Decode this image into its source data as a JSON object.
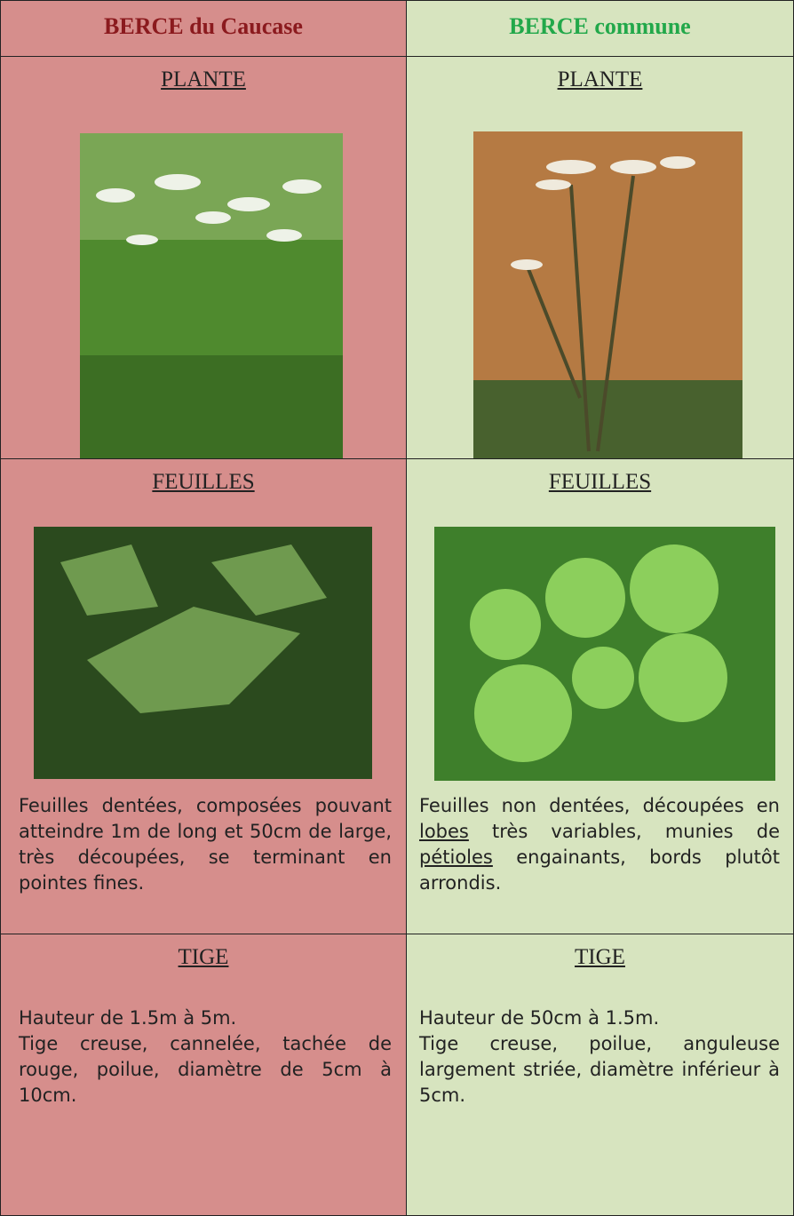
{
  "header": {
    "left": "BERCE du Caucase",
    "right": "BERCE commune"
  },
  "plante": {
    "left_label": "PLANTE",
    "right_label": "PLANTE"
  },
  "feuilles": {
    "left_label": "FEUILLES",
    "right_label": "FEUILLES",
    "left_text": "Feuilles dentées, composées pouvant atteindre 1m de long et 50cm de large, très découpées, se terminant en pointes fines.",
    "right_text": [
      "Feuilles non dentées, découpées en ",
      "lobes",
      " très variables, munies de ",
      "pétioles",
      " engainants, bords plutôt arrondis."
    ]
  },
  "tige": {
    "left_label": "TIGE",
    "right_label": "TIGE",
    "left_text": [
      "Hauteur de 1.5m à 5m.",
      "Tige creuse, cannelée, tachée de rouge, poilue, diamètre de 5cm à 10cm."
    ],
    "right_text": [
      "Hauteur de 50cm à 1.5m.",
      "Tige creuse, poilue, anguleuse largement striée, diamètre inférieur à 5cm."
    ]
  }
}
